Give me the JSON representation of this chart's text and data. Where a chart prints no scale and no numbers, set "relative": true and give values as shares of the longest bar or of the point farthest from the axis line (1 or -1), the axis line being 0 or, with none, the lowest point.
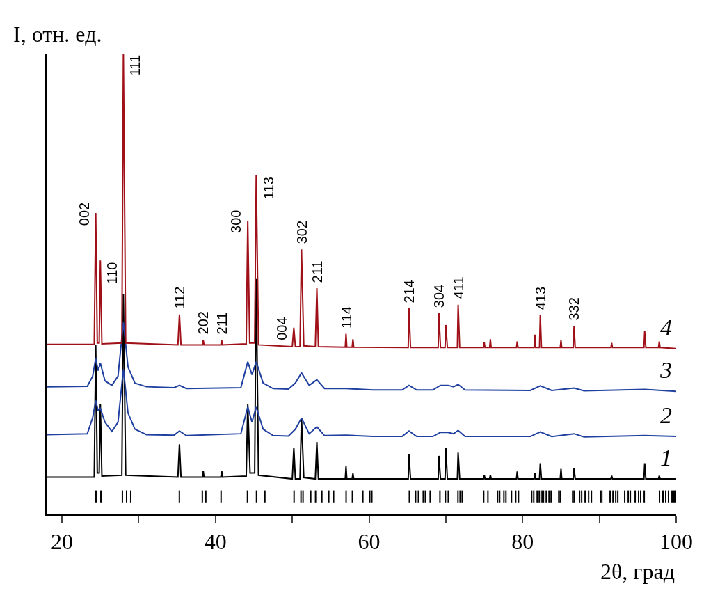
{
  "chart_data": {
    "type": "line",
    "relative": true,
    "xlabel": "2θ, град",
    "ylabel": "I, отн. ед.",
    "xlim": [
      18,
      100
    ],
    "xticks": [
      20,
      {
        "value": 30,
        "label": null
      },
      40,
      {
        "value": 50,
        "label": null
      },
      60,
      {
        "value": 70,
        "label": null
      },
      80,
      {
        "value": 90,
        "label": null
      },
      100
    ],
    "legend": false,
    "series": [
      {
        "name": "1",
        "color": "#000000",
        "x": [
          18,
          24.2,
          24.4,
          24.6,
          24.85,
          25.0,
          25.2,
          27.8,
          28.0,
          28.3,
          35.1,
          35.3,
          35.5,
          38.3,
          38.4,
          38.5,
          40.7,
          40.8,
          40.9,
          44.0,
          44.2,
          44.5,
          45.1,
          45.3,
          45.6,
          50.0,
          50.2,
          50.4,
          51.0,
          51.2,
          51.5,
          53.0,
          53.2,
          53.4,
          56.9,
          57.0,
          57.1,
          57.8,
          57.9,
          58.0,
          65.1,
          65.2,
          65.4,
          69.0,
          69.1,
          69.3,
          69.9,
          70.0,
          70.2,
          71.5,
          71.6,
          71.8,
          74.9,
          75.0,
          75.1,
          75.7,
          75.8,
          75.9,
          79.2,
          79.3,
          79.4,
          81.5,
          81.6,
          81.7,
          82.2,
          82.3,
          82.45,
          84.9,
          85.0,
          85.1,
          86.6,
          86.7,
          86.85,
          91.5,
          91.6,
          91.7,
          95.8,
          95.9,
          96.05,
          97.7,
          97.8,
          97.9,
          100
        ],
        "values": [
          0.081,
          0.081,
          0.367,
          0.09,
          0.09,
          0.239,
          0.083,
          0.085,
          0.479,
          0.085,
          0.081,
          0.152,
          0.081,
          0.081,
          0.095,
          0.081,
          0.081,
          0.095,
          0.081,
          0.083,
          0.239,
          0.09,
          0.09,
          0.511,
          0.085,
          0.077,
          0.145,
          0.077,
          0.077,
          0.209,
          0.08,
          0.077,
          0.157,
          0.077,
          0.077,
          0.104,
          0.077,
          0.077,
          0.089,
          0.077,
          0.077,
          0.131,
          0.077,
          0.077,
          0.127,
          0.077,
          0.077,
          0.145,
          0.077,
          0.077,
          0.134,
          0.077,
          0.077,
          0.086,
          0.077,
          0.077,
          0.086,
          0.077,
          0.077,
          0.093,
          0.077,
          0.077,
          0.089,
          0.077,
          0.077,
          0.111,
          0.077,
          0.077,
          0.099,
          0.077,
          0.077,
          0.101,
          0.077,
          0.077,
          0.084,
          0.077,
          0.077,
          0.111,
          0.077,
          0.077,
          0.084,
          0.077,
          0.077
        ]
      },
      {
        "name": "2",
        "color": "#2040a0",
        "x": [
          18,
          23.3,
          24.0,
          24.4,
          24.7,
          25.0,
          25.6,
          26.5,
          27.3,
          28.0,
          28.6,
          29.5,
          31,
          34.6,
          35.3,
          36.2,
          43.3,
          44.2,
          44.75,
          45.3,
          46.2,
          47.5,
          49.5,
          50.4,
          51.2,
          52.2,
          53.2,
          54.2,
          57.0,
          60.5,
          64.3,
          65.2,
          66.2,
          68.3,
          69.3,
          70.3,
          71.0,
          71.6,
          72.5,
          81,
          82.3,
          83.8,
          86.7,
          88,
          95.9,
          100
        ],
        "values": [
          0.173,
          0.175,
          0.21,
          0.247,
          0.225,
          0.23,
          0.2,
          0.18,
          0.2,
          0.315,
          0.22,
          0.185,
          0.173,
          0.172,
          0.181,
          0.171,
          0.175,
          0.233,
          0.2,
          0.233,
          0.185,
          0.171,
          0.17,
          0.185,
          0.209,
          0.175,
          0.19,
          0.171,
          0.172,
          0.169,
          0.169,
          0.181,
          0.169,
          0.169,
          0.178,
          0.178,
          0.175,
          0.182,
          0.169,
          0.169,
          0.179,
          0.169,
          0.175,
          0.168,
          0.171,
          0.169
        ]
      },
      {
        "name": "3",
        "color": "#2040a0",
        "x": [
          18,
          23.3,
          24.0,
          24.4,
          24.7,
          25.0,
          25.6,
          26.5,
          27.3,
          28.0,
          28.6,
          29.5,
          31,
          34.6,
          35.3,
          36.2,
          43.3,
          44.2,
          44.75,
          45.3,
          46.2,
          47.5,
          49.5,
          50.4,
          51.2,
          52.2,
          53.2,
          54.2,
          57.0,
          60.5,
          64.3,
          65.2,
          66.2,
          68.3,
          69.3,
          70.3,
          71.0,
          71.6,
          72.5,
          81,
          82.3,
          83.8,
          86.7,
          88,
          95.9,
          100
        ],
        "values": [
          0.277,
          0.278,
          0.3,
          0.339,
          0.312,
          0.328,
          0.29,
          0.28,
          0.3,
          0.417,
          0.32,
          0.285,
          0.277,
          0.275,
          0.28,
          0.273,
          0.275,
          0.331,
          0.303,
          0.331,
          0.285,
          0.273,
          0.272,
          0.285,
          0.307,
          0.28,
          0.292,
          0.273,
          0.273,
          0.27,
          0.27,
          0.28,
          0.27,
          0.27,
          0.28,
          0.28,
          0.277,
          0.282,
          0.27,
          0.269,
          0.279,
          0.269,
          0.274,
          0.268,
          0.271,
          0.267
        ]
      },
      {
        "name": "4",
        "color": "#a01018",
        "x": [
          18,
          24.2,
          24.4,
          24.6,
          24.85,
          25.0,
          25.2,
          27.8,
          28.0,
          28.3,
          35.1,
          35.3,
          35.5,
          38.3,
          38.4,
          38.5,
          40.7,
          40.8,
          40.9,
          44.0,
          44.2,
          44.45,
          45.1,
          45.3,
          45.6,
          50.0,
          50.2,
          50.4,
          51.0,
          51.2,
          51.5,
          53.0,
          53.2,
          53.4,
          56.9,
          57.0,
          57.1,
          57.8,
          57.9,
          58.0,
          65.1,
          65.2,
          65.4,
          69.0,
          69.1,
          69.3,
          69.9,
          70.0,
          70.2,
          71.5,
          71.6,
          71.8,
          74.9,
          75.0,
          75.1,
          75.7,
          75.8,
          75.9,
          79.2,
          79.3,
          79.4,
          81.5,
          81.6,
          81.7,
          82.2,
          82.3,
          82.45,
          84.9,
          85.0,
          85.1,
          86.6,
          86.7,
          86.85,
          91.5,
          91.6,
          91.7,
          95.8,
          95.9,
          96.05,
          97.7,
          97.8,
          97.9,
          100
        ],
        "values": [
          0.369,
          0.369,
          0.654,
          0.372,
          0.372,
          0.551,
          0.37,
          0.372,
          1,
          0.372,
          0.368,
          0.434,
          0.368,
          0.368,
          0.378,
          0.368,
          0.368,
          0.378,
          0.368,
          0.37,
          0.637,
          0.372,
          0.372,
          0.736,
          0.368,
          0.364,
          0.405,
          0.364,
          0.364,
          0.575,
          0.366,
          0.364,
          0.491,
          0.364,
          0.363,
          0.392,
          0.363,
          0.363,
          0.38,
          0.363,
          0.362,
          0.447,
          0.362,
          0.362,
          0.437,
          0.362,
          0.362,
          0.411,
          0.362,
          0.362,
          0.455,
          0.362,
          0.362,
          0.373,
          0.362,
          0.362,
          0.38,
          0.362,
          0.362,
          0.375,
          0.362,
          0.362,
          0.39,
          0.362,
          0.362,
          0.432,
          0.362,
          0.362,
          0.378,
          0.362,
          0.362,
          0.408,
          0.362,
          0.362,
          0.372,
          0.362,
          0.362,
          0.398,
          0.362,
          0.362,
          0.375,
          0.362,
          0.36
        ]
      },
      {
        "type": "line",
        "color": "#000000",
        "x": [
          24.43,
          24.43,
          null,
          25.07,
          25.07,
          null,
          27.87,
          27.87,
          null,
          28.42,
          28.42,
          null,
          28.96,
          28.96,
          null,
          35.29,
          35.29,
          null,
          38.28,
          38.28,
          null,
          38.73,
          38.73,
          null,
          40.72,
          40.72,
          null,
          44.16,
          44.16,
          null,
          45.34,
          45.34,
          null,
          46.43,
          46.43,
          null,
          50.23,
          50.23,
          null,
          51.13,
          51.13,
          null,
          51.4,
          51.4,
          null,
          52.4,
          52.4,
          null,
          53.03,
          53.03,
          null,
          53.85,
          53.85,
          null,
          54.75,
          54.75,
          null,
          55.38,
          55.38,
          null,
          57.01,
          57.01,
          null,
          57.83,
          57.83,
          null,
          59.19,
          59.19,
          null,
          60.09,
          60.09,
          null,
          60.36,
          60.36,
          null,
          65.25,
          65.25,
          null,
          66.06,
          66.06,
          null,
          66.43,
          66.43,
          null,
          67.06,
          67.06,
          null,
          67.33,
          67.33,
          null,
          67.96,
          67.96,
          null,
          69.23,
          69.23,
          null,
          69.95,
          69.95,
          null,
          70.32,
          70.32,
          null,
          71.58,
          71.58,
          null,
          71.86,
          71.86,
          null,
          72.13,
          72.13,
          null,
          74.93,
          74.93,
          null,
          75.48,
          75.48,
          null,
          76.74,
          76.74,
          null,
          77.01,
          77.01,
          null,
          77.56,
          77.56,
          null,
          77.83,
          77.83,
          null,
          78.55,
          78.55,
          null,
          79.1,
          79.1,
          null,
          79.46,
          79.46,
          null,
          81.18,
          81.18,
          null,
          81.45,
          81.45,
          null,
          81.9,
          81.9,
          null,
          82.17,
          82.17,
          null,
          82.53,
          82.53,
          null,
          82.71,
          82.71,
          null,
          83.08,
          83.08,
          null,
          83.44,
          83.44,
          null,
          83.71,
          83.71,
          null,
          84.71,
          84.71,
          null,
          84.89,
          84.89,
          null,
          86.52,
          86.52,
          null,
          86.7,
          86.7,
          null,
          87.42,
          87.42,
          null,
          87.69,
          87.69,
          null,
          88.14,
          88.14,
          null,
          88.6,
          88.6,
          null,
          88.96,
          88.96,
          null,
          90.14,
          90.14,
          null,
          90.32,
          90.32,
          null,
          91.4,
          91.4,
          null,
          91.77,
          91.77,
          null,
          92.13,
          92.13,
          null,
          92.4,
          92.4,
          null,
          93.3,
          93.3,
          null,
          93.76,
          93.76,
          null,
          94.03,
          94.03,
          null,
          94.66,
          94.66,
          null,
          95.11,
          95.11,
          null,
          95.38,
          95.38,
          null,
          95.84,
          95.84,
          null,
          97.83,
          97.83,
          null,
          98.28,
          98.28,
          null,
          98.64,
          98.64,
          null,
          99.0,
          99.0,
          null,
          99.46,
          99.46,
          null,
          99.73,
          99.73,
          null,
          99.91,
          99.91,
          null
        ],
        "values": [
          0.026,
          0.052,
          null,
          0.026,
          0.052,
          null,
          0.026,
          0.052,
          null,
          0.026,
          0.052,
          null,
          0.026,
          0.052,
          null,
          0.026,
          0.052,
          null,
          0.026,
          0.052,
          null,
          0.026,
          0.052,
          null,
          0.026,
          0.052,
          null,
          0.026,
          0.052,
          null,
          0.026,
          0.052,
          null,
          0.026,
          0.052,
          null,
          0.026,
          0.052,
          null,
          0.026,
          0.052,
          null,
          0.026,
          0.052,
          null,
          0.026,
          0.052,
          null,
          0.026,
          0.052,
          null,
          0.026,
          0.052,
          null,
          0.026,
          0.052,
          null,
          0.026,
          0.052,
          null,
          0.026,
          0.052,
          null,
          0.026,
          0.052,
          null,
          0.026,
          0.052,
          null,
          0.026,
          0.052,
          null,
          0.026,
          0.052,
          null,
          0.026,
          0.052,
          null,
          0.026,
          0.052,
          null,
          0.026,
          0.052,
          null,
          0.026,
          0.052,
          null,
          0.026,
          0.052,
          null,
          0.026,
          0.052,
          null,
          0.026,
          0.052,
          null,
          0.026,
          0.052,
          null,
          0.026,
          0.052,
          null,
          0.026,
          0.052,
          null,
          0.026,
          0.052,
          null,
          0.026,
          0.052,
          null,
          0.026,
          0.052,
          null,
          0.026,
          0.052,
          null,
          0.026,
          0.052,
          null,
          0.026,
          0.052,
          null,
          0.026,
          0.052,
          null,
          0.026,
          0.052,
          null,
          0.026,
          0.052,
          null,
          0.026,
          0.052,
          null,
          0.026,
          0.052,
          null,
          0.026,
          0.052,
          null,
          0.026,
          0.052,
          null,
          0.026,
          0.052,
          null,
          0.026,
          0.052,
          null,
          0.026,
          0.052,
          null,
          0.026,
          0.052,
          null,
          0.026,
          0.052,
          null,
          0.026,
          0.052,
          null,
          0.026,
          0.052,
          null,
          0.026,
          0.052,
          null,
          0.026,
          0.052,
          null,
          0.026,
          0.052,
          null,
          0.026,
          0.052,
          null,
          0.026,
          0.052,
          null,
          0.026,
          0.052,
          null,
          0.026,
          0.052,
          null,
          0.026,
          0.052,
          null,
          0.026,
          0.052,
          null,
          0.026,
          0.052,
          null,
          0.026,
          0.052,
          null,
          0.026,
          0.052,
          null,
          0.026,
          0.052,
          null,
          0.026,
          0.052,
          null,
          0.026,
          0.052,
          null,
          0.026,
          0.052,
          null,
          0.026,
          0.052,
          null,
          0.026,
          0.052,
          null,
          0.026,
          0.052,
          null,
          0.026,
          0.052,
          null,
          0.026,
          0.052,
          null,
          0.026,
          0.052,
          null,
          0.026,
          0.052,
          null,
          0.026,
          0.052,
          null,
          0.026,
          0.052,
          null,
          0.026,
          0.052,
          null,
          0.026,
          0.052,
          null,
          0.026,
          0.052,
          null,
          0.026,
          0.052,
          null
        ]
      }
    ],
    "annotations": [
      {
        "text": "002",
        "x": 24.4,
        "y": 0.654
      },
      {
        "text": "110",
        "x": 25.0,
        "y": 0.551
      },
      {
        "text": "111",
        "x": 28.0,
        "y": 1
      },
      {
        "text": "112",
        "x": 35.3,
        "y": 0.434
      },
      {
        "text": "202",
        "x": 38.4,
        "y": 0.378
      },
      {
        "text": "211",
        "x": 40.8,
        "y": 0.378
      },
      {
        "text": "300",
        "x": 44.2,
        "y": 0.637
      },
      {
        "text": "113",
        "x": 45.3,
        "y": 0.736
      },
      {
        "text": "004",
        "x": 50.2,
        "y": 0.405
      },
      {
        "text": "302",
        "x": 51.2,
        "y": 0.575
      },
      {
        "text": "211",
        "x": 53.2,
        "y": 0.491
      },
      {
        "text": "114",
        "x": 57.0,
        "y": 0.392
      },
      {
        "text": "214",
        "x": 65.2,
        "y": 0.447
      },
      {
        "text": "304",
        "x": 69.1,
        "y": 0.437
      },
      {
        "text": "411",
        "x": 71.6,
        "y": 0.455
      },
      {
        "text": "413",
        "x": 82.3,
        "y": 0.432
      },
      {
        "text": "332",
        "x": 86.7,
        "y": 0.408
      }
    ]
  }
}
